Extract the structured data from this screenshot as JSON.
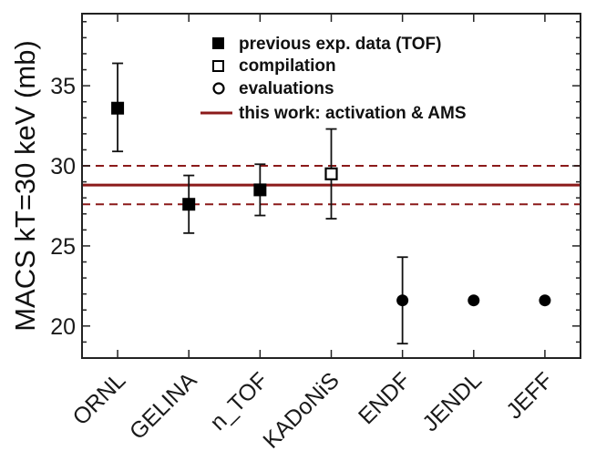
{
  "chart_data": {
    "type": "scatter",
    "title": "",
    "xlabel": "",
    "ylabel": "MACS kT=30 keV (mb)",
    "ylim": [
      18,
      39.5
    ],
    "yticks": [
      20,
      25,
      30,
      35
    ],
    "categories": [
      "ORNL",
      "GELINA",
      "n_TOF",
      "KADoNiS",
      "ENDF",
      "JENDL",
      "JEFF"
    ],
    "grid": false,
    "legend_position": "top-right",
    "series": [
      {
        "name": "previous exp. data (TOF)",
        "marker": "filled-square",
        "color": "#000000",
        "points": [
          {
            "category": "ORNL",
            "y": 33.6,
            "err_low": 30.9,
            "err_high": 36.4
          },
          {
            "category": "GELINA",
            "y": 27.6,
            "err_low": 25.8,
            "err_high": 29.4
          },
          {
            "category": "n_TOF",
            "y": 28.5,
            "err_low": 26.9,
            "err_high": 30.1
          }
        ]
      },
      {
        "name": "compilation",
        "marker": "open-square",
        "color": "#000000",
        "points": [
          {
            "category": "KADoNiS",
            "y": 29.5,
            "err_low": 26.7,
            "err_high": 32.3
          }
        ]
      },
      {
        "name": "evaluations",
        "marker": "filled-circle",
        "color": "#000000",
        "points": [
          {
            "category": "ENDF",
            "y": 21.6,
            "err_low": 18.9,
            "err_high": 24.3
          },
          {
            "category": "JENDL",
            "y": 21.6
          },
          {
            "category": "JEFF",
            "y": 21.6
          }
        ]
      }
    ],
    "reference_line": {
      "name": "this work: activation & AMS",
      "color": "#8b1a1a",
      "value": 28.8,
      "band_low": 27.6,
      "band_high": 30.0
    }
  }
}
